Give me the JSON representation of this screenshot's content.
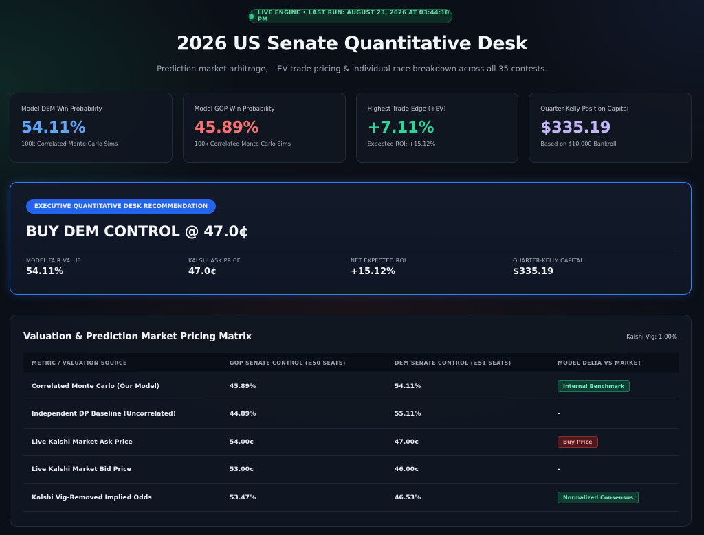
{
  "header": {
    "status": "LIVE ENGINE • LAST RUN: AUGUST 23, 2026 AT 03:44:10 PM",
    "title": "2026 US Senate Quantitative Desk",
    "subtitle": "Prediction market arbitrage, +EV trade pricing & individual race breakdown across all 35 contests."
  },
  "kpis": [
    {
      "label": "Model DEM Win Probability",
      "value": "54.11%",
      "sub": "100k Correlated Monte Carlo Sims",
      "color": "#60a5fa"
    },
    {
      "label": "Model GOP Win Probability",
      "value": "45.89%",
      "sub": "100k Correlated Monte Carlo Sims",
      "color": "#f87171"
    },
    {
      "label": "Highest Trade Edge (+EV)",
      "value": "+7.11%",
      "sub": "Expected ROI: +15.12%",
      "color": "#34d399"
    },
    {
      "label": "Quarter-Kelly Position Capital",
      "value": "$335.19",
      "sub": "Based on $10,000 Bankroll",
      "color": "#c4b5fd"
    }
  ],
  "recommendation": {
    "badge": "EXECUTIVE QUANTITATIVE DESK RECOMMENDATION",
    "headline": "BUY DEM CONTROL @ 47.0¢",
    "metrics": [
      {
        "label": "MODEL FAIR VALUE",
        "value": "54.11%"
      },
      {
        "label": "KALSHI ASK PRICE",
        "value": "47.0¢"
      },
      {
        "label": "NET EXPECTED ROI",
        "value": "+15.12%"
      },
      {
        "label": "QUARTER-KELLY CAPITAL",
        "value": "$335.19"
      }
    ]
  },
  "matrix": {
    "title": "Valuation & Prediction Market Pricing Matrix",
    "vig": "Kalshi Vig: 1.00%",
    "columns": [
      "METRIC / VALUATION SOURCE",
      "GOP SENATE CONTROL (≥50 SEATS)",
      "DEM SENATE CONTROL (≥51 SEATS)",
      "MODEL DELTA VS MARKET"
    ],
    "rows": [
      {
        "source": "Correlated Monte Carlo (Our Model)",
        "gop": "45.89%",
        "dem": "54.11%",
        "delta": "Internal Benchmark"
      },
      {
        "source": "Independent DP Baseline (Uncorrelated)",
        "gop": "44.89%",
        "dem": "55.11%",
        "delta": "-"
      },
      {
        "source": "Live Kalshi Market Ask Price",
        "gop": "54.00¢",
        "dem": "47.00¢",
        "delta": "Buy Price"
      },
      {
        "source": "Live Kalshi Market Bid Price",
        "gop": "53.00¢",
        "dem": "46.00¢",
        "delta": "-"
      },
      {
        "source": "Kalshi Vig-Removed Implied Odds",
        "gop": "53.47%",
        "dem": "46.53%",
        "delta": "Normalized Consensus"
      }
    ]
  }
}
